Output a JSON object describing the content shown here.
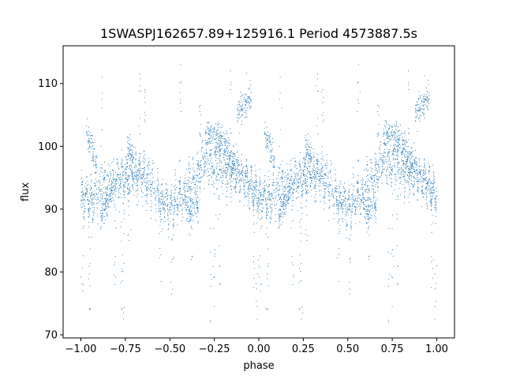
{
  "chart_data": {
    "type": "scatter",
    "title": "1SWASPJ162657.89+125916.1 Period 4573887.5s",
    "xlabel": "phase",
    "ylabel": "flux",
    "xlim": [
      -1.1,
      1.1
    ],
    "ylim": [
      69.5,
      116
    ],
    "xticks": [
      -1.0,
      -0.75,
      -0.5,
      -0.25,
      0.0,
      0.25,
      0.5,
      0.75,
      1.0
    ],
    "xtick_labels": [
      "−1.00",
      "−0.75",
      "−0.50",
      "−0.25",
      "0.00",
      "0.25",
      "0.50",
      "0.75",
      "1.00"
    ],
    "yticks": [
      70,
      80,
      90,
      100,
      110
    ],
    "ytick_labels": [
      "70",
      "80",
      "90",
      "100",
      "110"
    ],
    "grid": false,
    "legend": "none",
    "marker_color": "#1f77b4",
    "series": [
      {
        "trend": {
          "x": [
            0.0,
            0.05,
            0.1,
            0.15,
            0.2,
            0.25,
            0.3,
            0.35,
            0.4,
            0.45,
            0.5,
            0.55,
            0.6,
            0.65,
            0.7,
            0.75,
            0.8,
            0.85,
            0.9,
            0.95,
            1.0
          ],
          "y": [
            92.0,
            91.5,
            92.5,
            93.5,
            94.5,
            95.0,
            95.5,
            95.5,
            94.0,
            91.0,
            90.5,
            91.5,
            93.0,
            95.0,
            98.0,
            97.0,
            96.5,
            95.5,
            95.0,
            94.0,
            92.0
          ]
        },
        "branches": [
          {
            "x": [
              0.7,
              0.73,
              0.76,
              0.79,
              0.82,
              0.85,
              0.88
            ],
            "y": [
              101.5,
              102.0,
              101.5,
              101.0,
              100.0,
              98.0,
              96.5
            ]
          },
          {
            "x": [
              0.88,
              0.9,
              0.92,
              0.94,
              0.96
            ],
            "y": [
              105.5,
              106.0,
              106.5,
              107.5,
              108.0
            ]
          },
          {
            "x": [
              0.03,
              0.05,
              0.07,
              0.09
            ],
            "y": [
              102.0,
              101.0,
              99.0,
              97.0
            ]
          },
          {
            "x": [
              0.26,
              0.28,
              0.3
            ],
            "y": [
              100.5,
              99.0,
              97.5
            ]
          },
          {
            "x": [
              0.11,
              0.13,
              0.15,
              0.17
            ],
            "y": [
              88.5,
              90.0,
              91.0,
              92.0
            ]
          },
          {
            "x": [
              0.6,
              0.63,
              0.66
            ],
            "y": [
              89.0,
              90.0,
              91.0
            ]
          }
        ],
        "outliers": [
          {
            "x": 0.12,
            "y": 111.0
          },
          {
            "x": 0.23,
            "y": 74.0
          },
          {
            "x": 0.24,
            "y": 72.5
          },
          {
            "x": 0.33,
            "y": 111.5
          },
          {
            "x": 0.36,
            "y": 109.0
          },
          {
            "x": 0.51,
            "y": 76.5
          },
          {
            "x": 0.56,
            "y": 113.0
          },
          {
            "x": 0.62,
            "y": 82.0
          },
          {
            "x": 0.67,
            "y": 106.5
          },
          {
            "x": 0.73,
            "y": 72.0
          },
          {
            "x": 0.75,
            "y": 74.5
          },
          {
            "x": 0.78,
            "y": 78.0
          },
          {
            "x": 0.84,
            "y": 112.0
          },
          {
            "x": 0.99,
            "y": 72.5
          },
          {
            "x": 0.97,
            "y": 77.5
          },
          {
            "x": 0.19,
            "y": 78.0
          },
          {
            "x": 0.27,
            "y": 85.0
          },
          {
            "x": 0.45,
            "y": 78.5
          },
          {
            "x": 0.05,
            "y": 74.0
          },
          {
            "x": 0.01,
            "y": 77.0
          }
        ],
        "scatter_spread": 1.4
      }
    ]
  }
}
